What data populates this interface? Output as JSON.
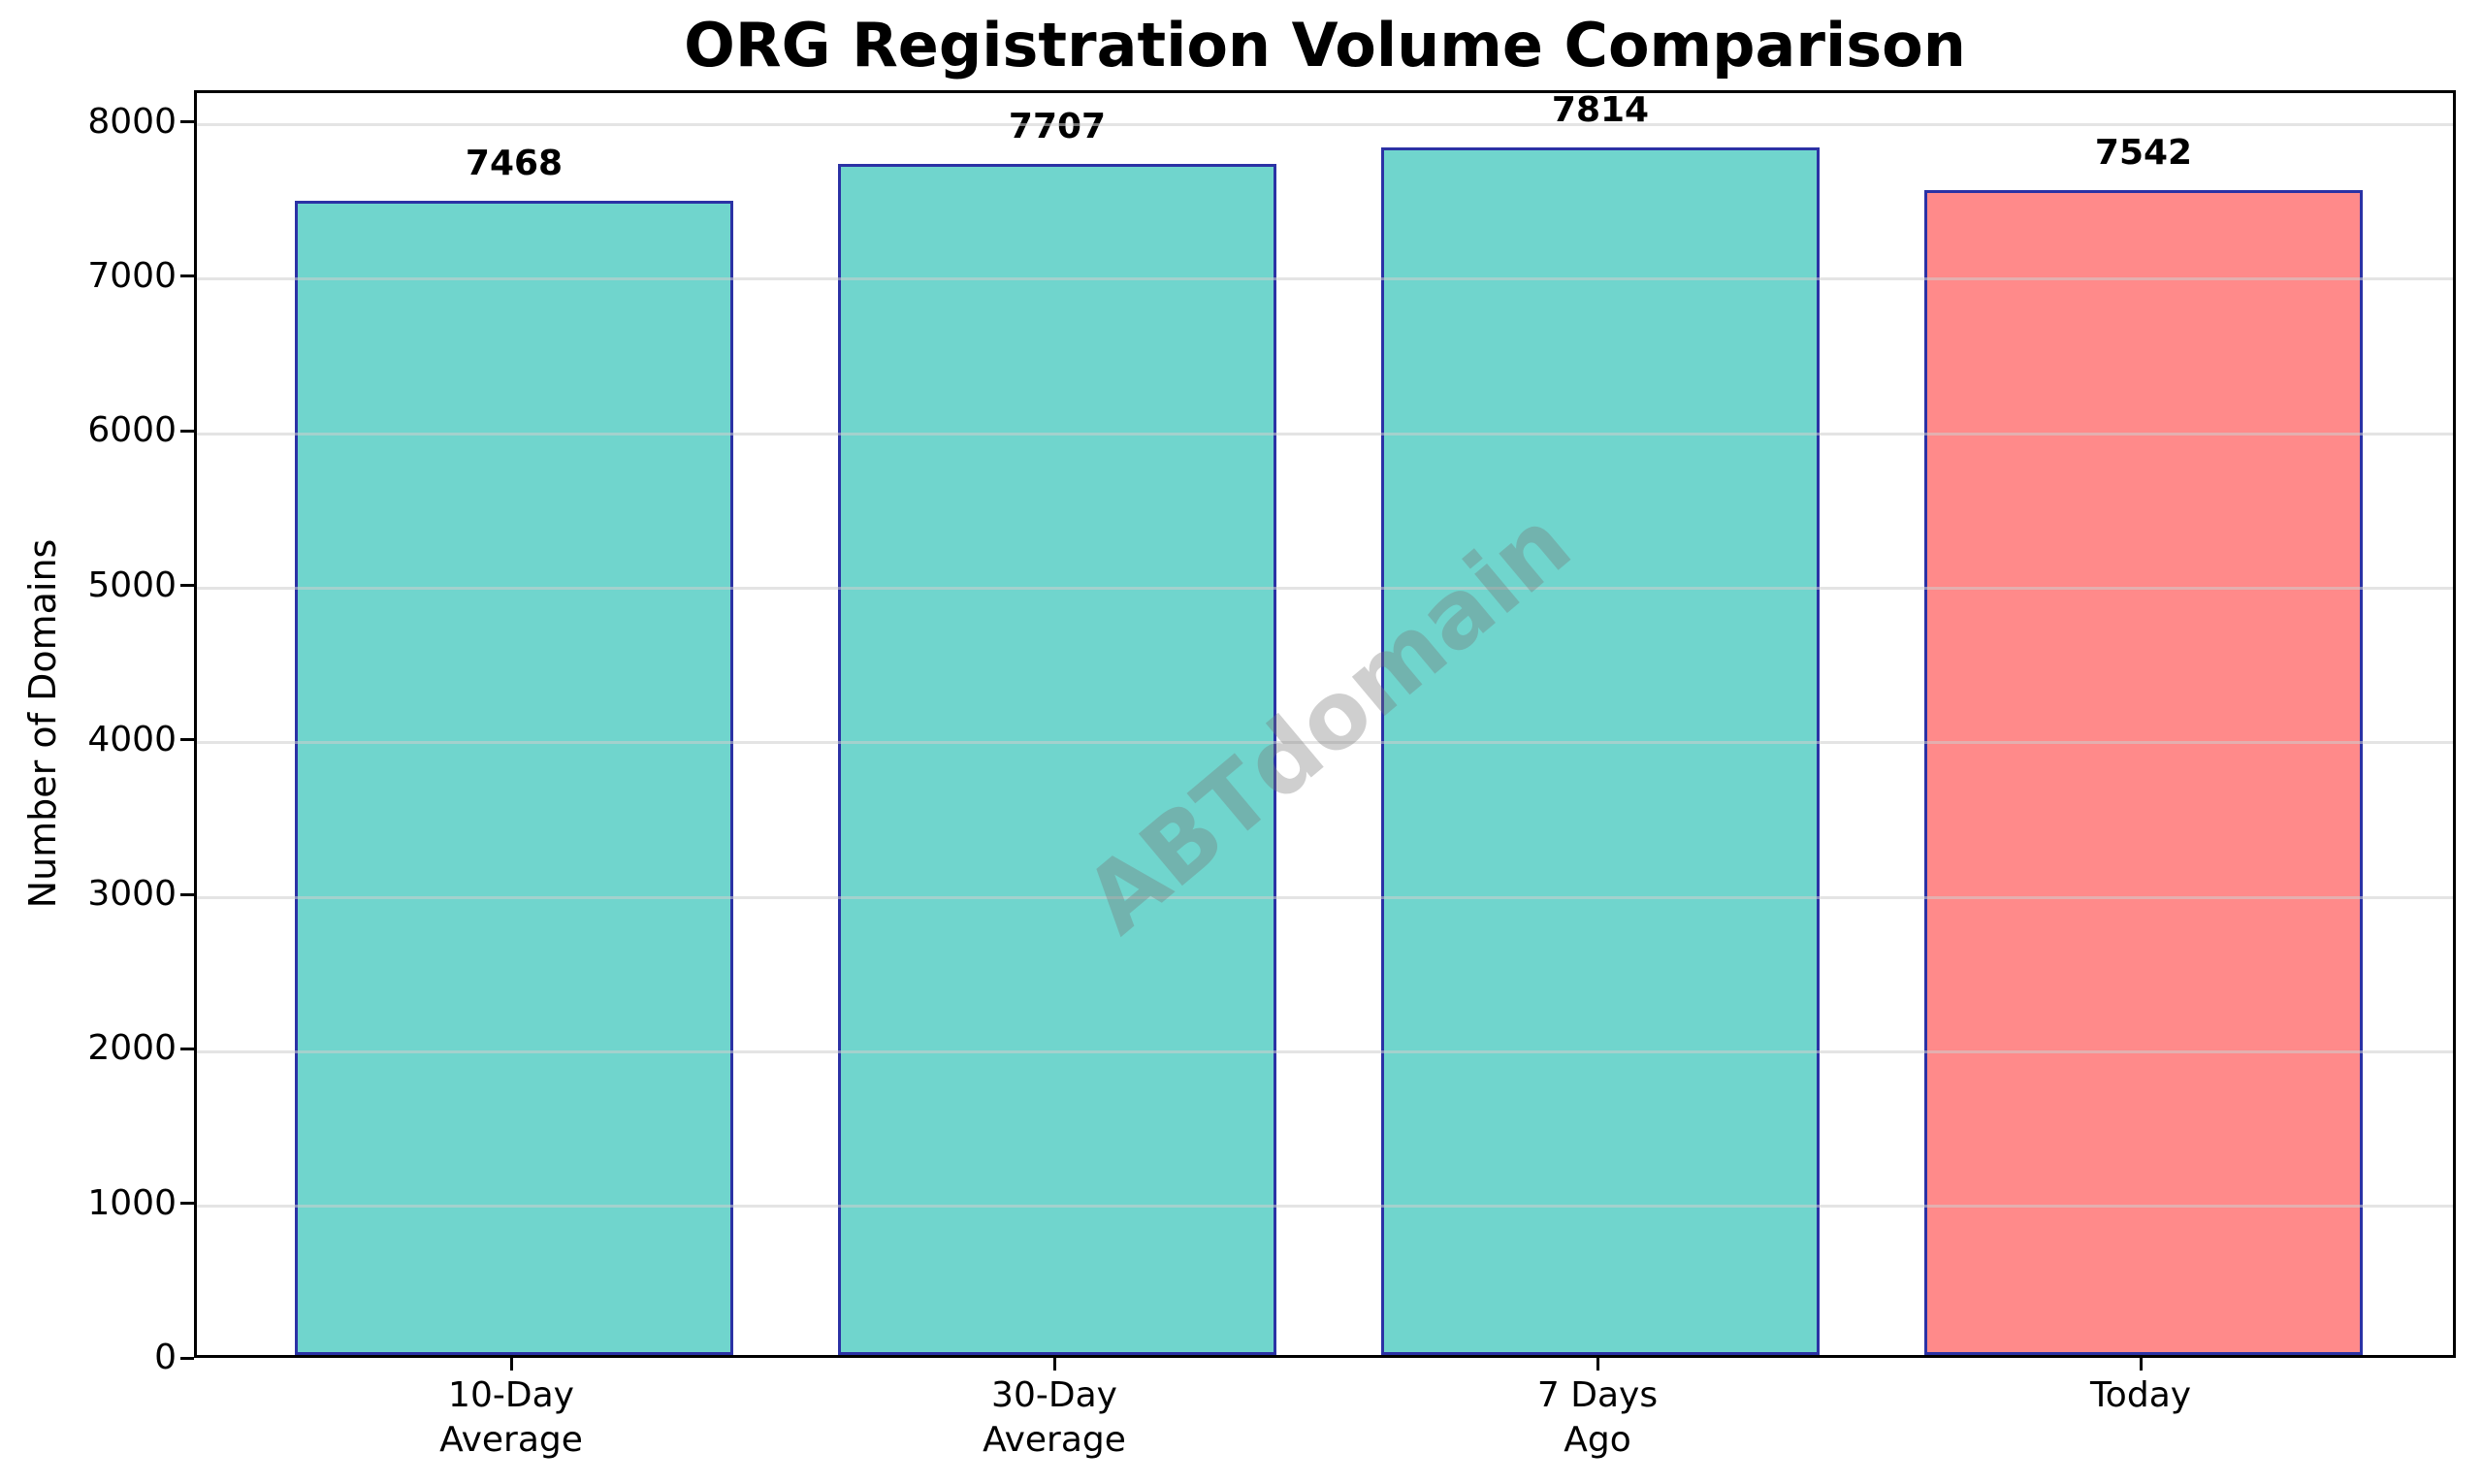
{
  "chart_data": {
    "type": "bar",
    "title": "ORG Registration Volume Comparison",
    "ylabel": "Number of Domains",
    "xlabel": "",
    "categories": [
      "10-Day Average",
      "30-Day Average",
      "7 Days Ago",
      "Today"
    ],
    "tick_lines": [
      [
        "10-Day",
        "Average"
      ],
      [
        "30-Day",
        "Average"
      ],
      [
        "7 Days",
        "Ago"
      ],
      [
        "Today"
      ]
    ],
    "values": [
      7468,
      7707,
      7814,
      7542
    ],
    "value_labels": [
      "7468",
      "7707",
      "7814",
      "7542"
    ],
    "bar_colors": [
      "#70d5cd",
      "#70d5cd",
      "#70d5cd",
      "#ff8a8a"
    ],
    "bar_edge_color": "#2b32a5",
    "ylim": [
      0,
      8205
    ],
    "yticks": [
      0,
      1000,
      2000,
      3000,
      4000,
      5000,
      6000,
      7000,
      8000
    ],
    "grid": "horizontal",
    "legend": null,
    "watermark": "ABTdomain"
  },
  "colors": {
    "background": "#ffffff",
    "teal_bar": "#70d5cd",
    "today_bar": "#ff8a8a",
    "bar_edge": "#2b32a5",
    "gridline": "#e6e6e6",
    "spine": "#000000",
    "text": "#000000",
    "watermark_gray": "#767676"
  }
}
